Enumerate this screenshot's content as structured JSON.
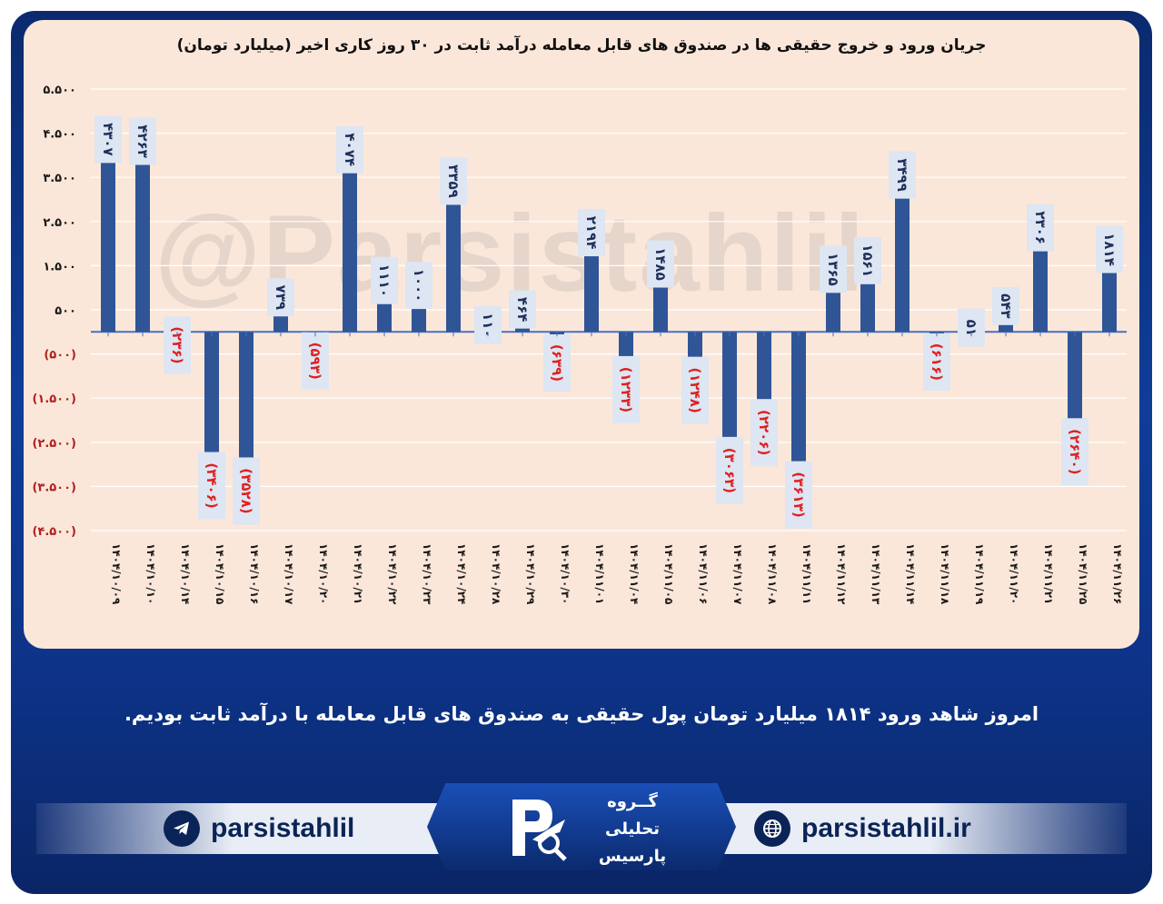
{
  "chart_data": {
    "type": "bar",
    "title": "جریان ورود و خروج حقیقی ها در صندوق های قابل معامله درآمد ثابت در ۳۰ روز کاری اخیر (میلیارد تومان)",
    "categories": [
      "۱۴۰۴/۱۰/۰۹",
      "۱۴۰۴/۱۰/۱۰",
      "۱۴۰۴/۱۰/۱۴",
      "۱۴۰۴/۱۰/۱۵",
      "۱۴۰۴/۱۰/۱۶",
      "۱۴۰۴/۱۰/۱۷",
      "۱۴۰۴/۱۰/۲۰",
      "۱۴۰۴/۱۰/۲۱",
      "۱۴۰۴/۱۰/۲۲",
      "۱۴۰۴/۱۰/۲۳",
      "۱۴۰۴/۱۰/۲۴",
      "۱۴۰۴/۱۰/۲۸",
      "۱۴۰۴/۱۰/۲۹",
      "۱۴۰۴/۱۰/۳۰",
      "۱۴۰۴/۱۱/۰۱",
      "۱۴۰۴/۱۱/۰۴",
      "۱۴۰۴/۱۱/۰۵",
      "۱۴۰۴/۱۱/۰۶",
      "۱۴۰۴/۱۱/۰۷",
      "۱۴۰۴/۱۱/۰۸",
      "۱۴۰۴/۱۱/۱۱",
      "۱۴۰۴/۱۱/۱۲",
      "۱۴۰۴/۱۱/۱۳",
      "۱۴۰۴/۱۱/۱۴",
      "۱۴۰۴/۱۱/۱۸",
      "۱۴۰۴/۱۱/۱۹",
      "۱۴۰۴/۱۱/۲۰",
      "۱۴۰۴/۱۱/۲۱",
      "۱۴۰۴/۱۱/۲۵",
      "۱۴۰۴/۱۱/۲۶"
    ],
    "values": [
      4307,
      4263,
      -236,
      -3406,
      -3528,
      739,
      -593,
      4074,
      1110,
      1000,
      3359,
      110,
      464,
      -639,
      2194,
      -1233,
      1485,
      -1248,
      -3063,
      -2206,
      -3613,
      1365,
      1561,
      3499,
      -616,
      51,
      543,
      2306,
      -2640,
      1814
    ],
    "data_labels": [
      "۴۳۰۷",
      "۴۲۶۳",
      "(۲۳۶)",
      "(۳۴۰۶)",
      "(۳۵۲۸)",
      "۷۳۹",
      "(۵۹۳)",
      "۴۰۷۴",
      "۱۱۱۰",
      "۱۰۰۰",
      "۳۳۵۹",
      "۱۱۰",
      "۴۶۴",
      "(۶۳۹)",
      "۲۱۹۴",
      "(۱۲۳۳)",
      "۱۴۸۵",
      "(۱۲۴۸)",
      "(۳۰۶۳)",
      "(۲۲۰۶)",
      "(۳۶۱۳)",
      "۱۳۶۵",
      "۱۵۶۱",
      "۳۴۹۹",
      "(۶۱۶)",
      "۵۱",
      "۵۴۳",
      "۲۳۰۶",
      "(۲۶۴۰)",
      "۱۸۱۴"
    ],
    "yticks": [
      5500,
      4500,
      3500,
      2500,
      1500,
      500,
      -500,
      -1500,
      -2500,
      -3500,
      -4500
    ],
    "ytick_labels": [
      "۵.۵۰۰",
      "۴.۵۰۰",
      "۳.۵۰۰",
      "۲.۵۰۰",
      "۱.۵۰۰",
      "۵۰۰",
      "(۵۰۰)",
      "(۱.۵۰۰)",
      "(۲.۵۰۰)",
      "(۳.۵۰۰)",
      "(۴.۵۰۰)"
    ],
    "ylim": [
      -4500,
      5500
    ],
    "grid": true,
    "legend": false,
    "colors": {
      "bar": "#2f5597",
      "positive_label": "#1f2f5a",
      "negative_label": "#e02020",
      "label_box": "#dde6f2",
      "grid": "#ffffff",
      "axis": "#4472c4"
    }
  },
  "watermark": "@Parsistahlil",
  "caption": "امروز شاهد ورود ۱۸۱۴ میلیارد تومان پول حقیقی به صندوق های قابل معامله با درآمد ثابت بودیم.",
  "footer": {
    "telegram_handle": "parsistahlil",
    "website": "parsistahlil.ir",
    "logo_lines": [
      "گــروه",
      "تحلیلی",
      "پارسیس"
    ],
    "icons": [
      "telegram-icon",
      "globe-icon",
      "parsis-logo"
    ]
  }
}
